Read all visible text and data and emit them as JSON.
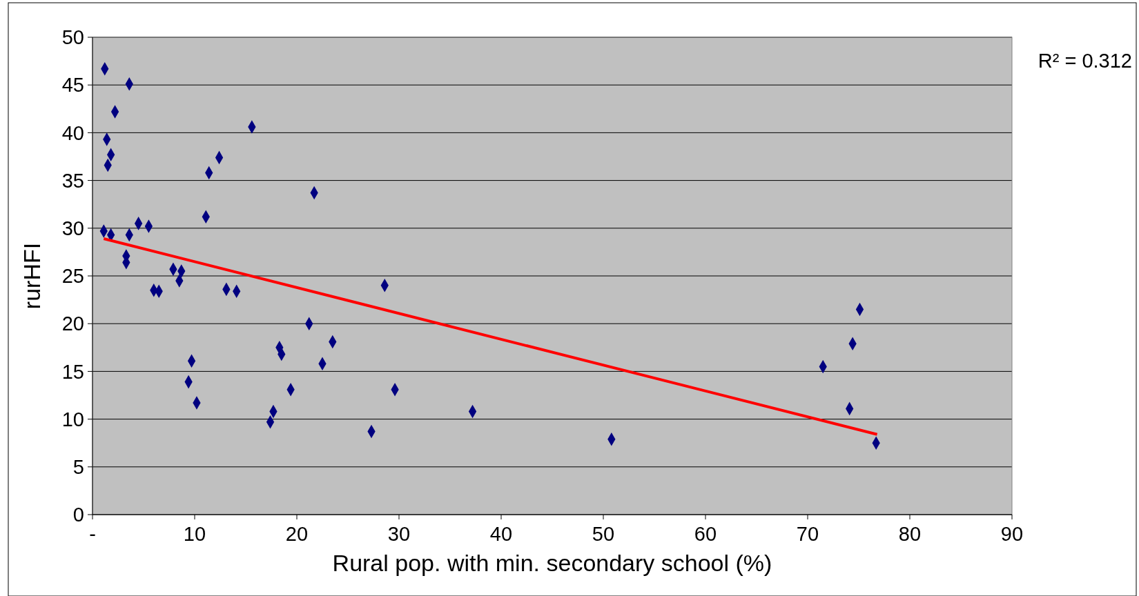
{
  "chart_data": {
    "type": "scatter",
    "xlabel": "Rural pop. with min. secondary school (%)",
    "ylabel": "rurHFI",
    "xlim": [
      0,
      90
    ],
    "xticks": [
      {
        "value": 0,
        "label": "-"
      },
      10,
      20,
      30,
      40,
      50,
      60,
      70,
      80,
      90
    ],
    "ylim": [
      0,
      50
    ],
    "yticks": [
      0,
      5,
      10,
      15,
      20,
      25,
      30,
      35,
      40,
      45,
      50
    ],
    "grid": "y",
    "annotations": [
      "R² = 0.312"
    ],
    "series": [
      {
        "color": "#000080",
        "marker": "diamond",
        "x": [
          1.2,
          3.6,
          2.2,
          1.4,
          1.8,
          1.5,
          15.6,
          12.4,
          11.4,
          21.7,
          11.1,
          1.1,
          1.8,
          3.6,
          4.5,
          5.5,
          3.3,
          3.3,
          7.9,
          8.7,
          8.5,
          6.0,
          6.5,
          13.1,
          14.1,
          28.6,
          21.2,
          23.5,
          18.3,
          18.5,
          22.5,
          9.7,
          9.4,
          10.2,
          19.4,
          29.6,
          17.7,
          17.4,
          27.3,
          37.2,
          50.8,
          71.5,
          74.4,
          75.1,
          74.1,
          76.7
        ],
        "values": [
          46.7,
          45.1,
          42.2,
          39.3,
          37.7,
          36.6,
          40.6,
          37.4,
          35.8,
          33.7,
          31.2,
          29.7,
          29.3,
          29.3,
          30.5,
          30.2,
          27.1,
          26.4,
          25.7,
          25.5,
          24.5,
          23.5,
          23.4,
          23.6,
          23.4,
          24.0,
          20.0,
          18.1,
          17.5,
          16.8,
          15.8,
          16.1,
          13.9,
          11.7,
          13.1,
          13.1,
          10.8,
          9.7,
          8.7,
          10.8,
          7.9,
          15.5,
          17.9,
          21.5,
          11.1,
          7.5
        ]
      },
      {
        "type": "line",
        "color": "#ff0000",
        "marker": "none",
        "line_style": "solid",
        "x": [
          1.1,
          76.8
        ],
        "values": [
          28.9,
          8.4
        ]
      }
    ]
  }
}
